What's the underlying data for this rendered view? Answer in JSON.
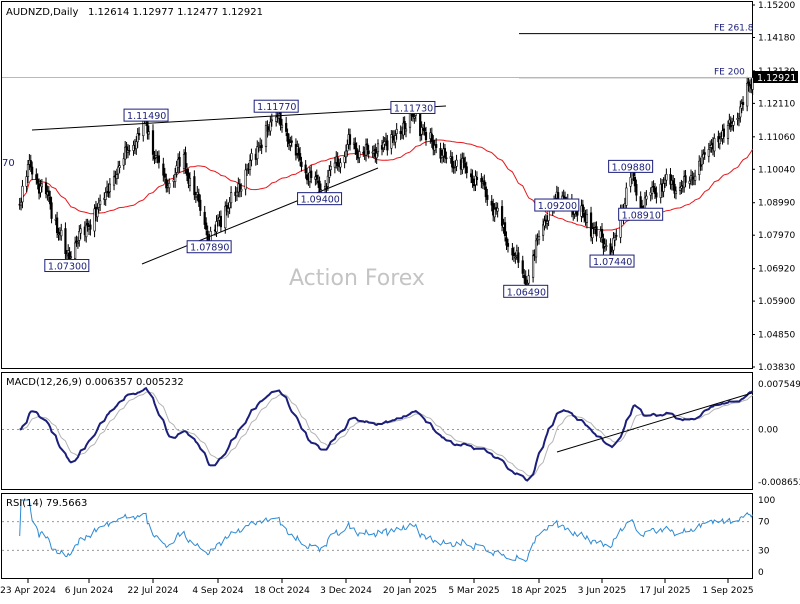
{
  "chart_data": {
    "type": "candlestick",
    "symbol_label": "AUDNZD,Daily",
    "ohlc_label": "1.12614 1.12977 1.12477 1.12921",
    "last_price": 1.12921,
    "last_price_label": "1.12921",
    "watermark": "Action Forex",
    "price_axis": {
      "min": 1.0383,
      "max": 1.152,
      "ticks": [
        "1.15200",
        "1.14180",
        "1.13130",
        "1.12110",
        "1.11060",
        "1.10040",
        "1.08990",
        "1.07970",
        "1.06920",
        "1.05900",
        "1.04850",
        "1.03830"
      ]
    },
    "x_axis": {
      "ticks": [
        "23 Apr 2024",
        "6 Jun 2024",
        "22 Jul 2024",
        "4 Sep 2024",
        "18 Oct 2024",
        "3 Dec 2024",
        "20 Jan 2025",
        "5 Mar 2025",
        "18 Apr 2025",
        "3 Jun 2025",
        "17 Jul 2025",
        "1 Sep 2025"
      ]
    },
    "ma_color": "#e8161b",
    "candle_color": "#000000",
    "price_labels": [
      {
        "text": "1.07300",
        "value": 1.073,
        "date": "2024-05-21"
      },
      {
        "text": "1.11490",
        "value": 1.1149,
        "date": "2024-07-17"
      },
      {
        "text": "1.07890",
        "value": 1.0789,
        "date": "2024-08-29"
      },
      {
        "text": "1.11770",
        "value": 1.1177,
        "date": "2024-10-14"
      },
      {
        "text": "1.09400",
        "value": 1.094,
        "date": "2024-11-14"
      },
      {
        "text": "1.11730",
        "value": 1.1173,
        "date": "2025-01-22"
      },
      {
        "text": "1.06490",
        "value": 1.0649,
        "date": "2025-04-09"
      },
      {
        "text": "1.09200",
        "value": 1.092,
        "date": "2025-05-01"
      },
      {
        "text": "1.07440",
        "value": 1.0744,
        "date": "2025-06-10"
      },
      {
        "text": "1.09880",
        "value": 1.0988,
        "date": "2025-06-23"
      },
      {
        "text": "1.08910",
        "value": 1.0891,
        "date": "2025-06-30"
      }
    ],
    "left_edge_label": "70",
    "fe_levels": [
      {
        "text": "FE 261.8",
        "value": 1.143
      },
      {
        "text": "FE 200",
        "value": 1.1292
      }
    ],
    "macd": {
      "label": "MACD(12,26,9) 0.006357 0.005232",
      "line_color": "#1b1f7a",
      "signal_color": "#b4b4b4",
      "axis_ticks": [
        "0.007549",
        "0.00",
        "-0.008653"
      ],
      "axis_values": [
        0.007549,
        0.0,
        -0.008653
      ],
      "min": -0.0095,
      "max": 0.0085
    },
    "rsi": {
      "label": "RSI(14) 79.5663",
      "value": 79.5663,
      "line_color": "#2e8bd4",
      "axis_ticks": [
        "100",
        "70",
        "30",
        "0"
      ],
      "axis_values": [
        100,
        70,
        30,
        0
      ],
      "min": 0,
      "max": 100
    }
  }
}
